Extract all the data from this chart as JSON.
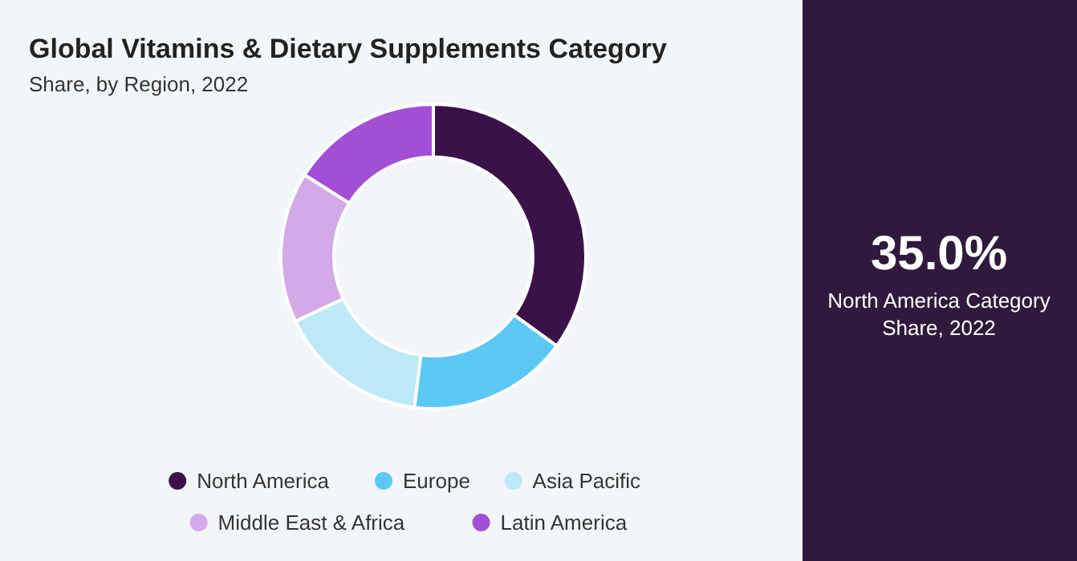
{
  "chart_data": [
    {
      "type": "donut",
      "title": "Global Vitamins & Dietary Supplements Category",
      "subtitle": "Share, by Region, 2022",
      "categories": [
        "North America",
        "Europe",
        "Asia Pacific",
        "Middle East & Africa",
        "Latin America"
      ],
      "values": [
        35,
        17,
        16,
        16,
        16
      ],
      "colors": [
        "#3b1248",
        "#5bc8f5",
        "#bde9f7",
        "#d4a9e8",
        "#a24fd6"
      ],
      "legend": "bottom"
    },
    {
      "type": "other",
      "title": "35.0%",
      "subtitle": "North America Category Share, 2022"
    }
  ]
}
